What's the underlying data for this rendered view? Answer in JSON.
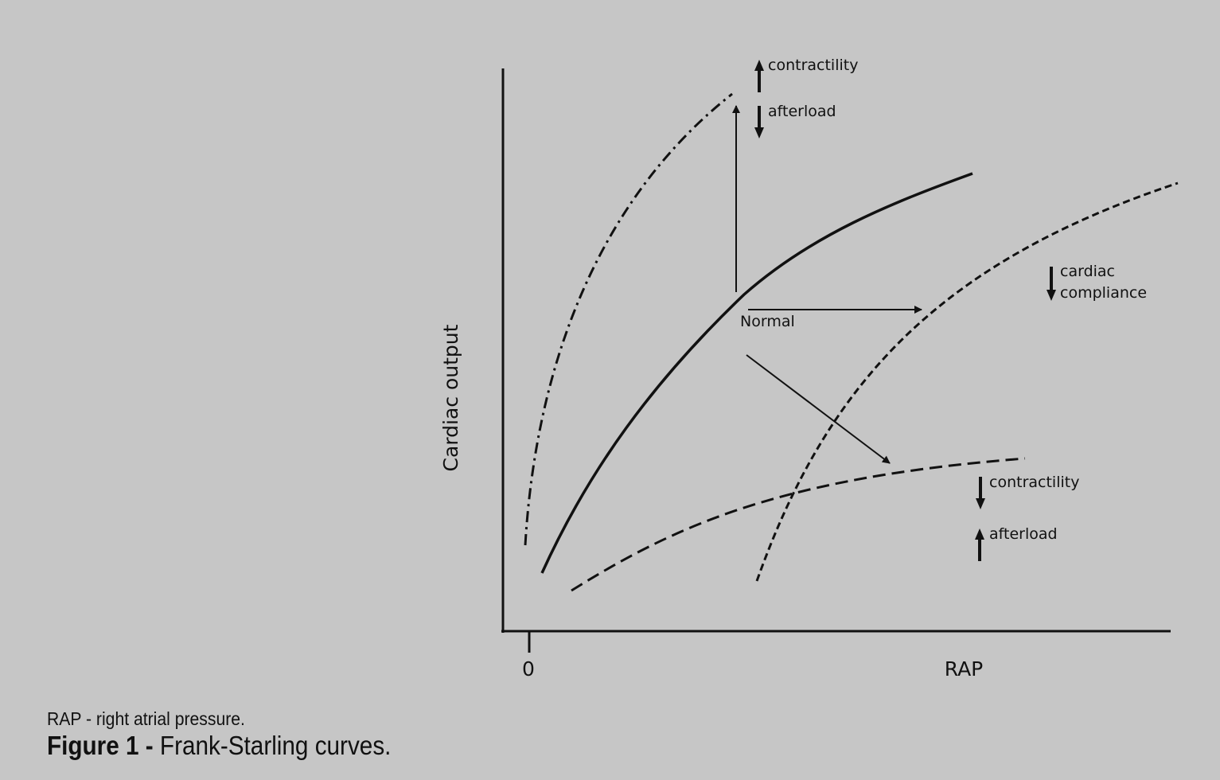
{
  "diagram": {
    "y_axis_label": "Cardiac output",
    "x_axis_label": "RAP",
    "x_origin_label": "0",
    "curves": {
      "normal": "Normal",
      "increased_contractility": "contractility",
      "decreased_afterload": "afterload",
      "decreased_compliance_line1": "cardiac",
      "decreased_compliance_line2": "compliance",
      "decreased_contractility": "contractility",
      "increased_afterload": "afterload"
    }
  },
  "caption": {
    "abbreviation_note": "RAP - right atrial pressure.",
    "figure_label": "Figure 1 -",
    "figure_title": "Frank-Starling curves."
  },
  "colors": {
    "background": "#c6c6c6",
    "ink": "#111111"
  }
}
